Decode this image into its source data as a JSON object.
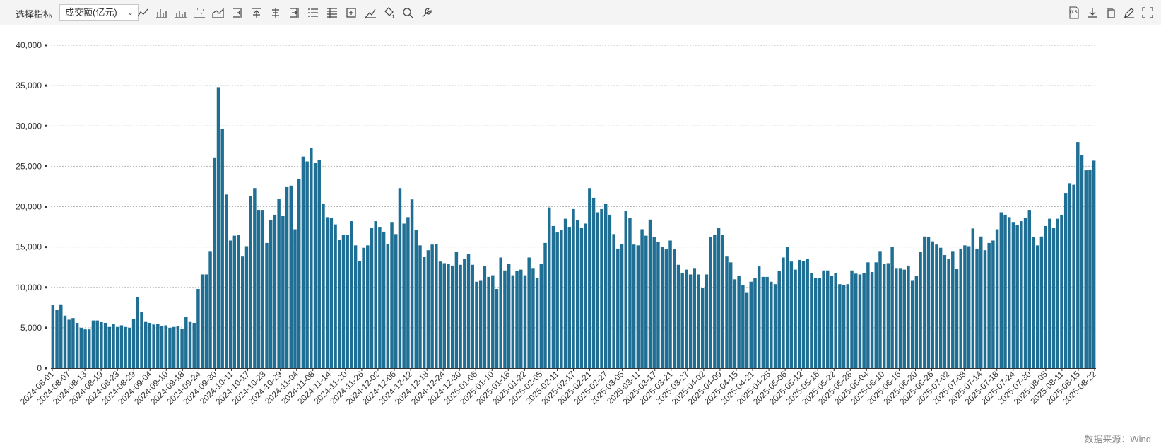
{
  "toolbar": {
    "indicator_label": "选择指标",
    "indicator_value": "成交额(亿元)",
    "tools": [
      {
        "name": "line-chart-icon"
      },
      {
        "name": "bar-chart-icon"
      },
      {
        "name": "dot-bar-icon"
      },
      {
        "name": "scatter-icon"
      },
      {
        "name": "area-chart-icon"
      },
      {
        "name": "align-right-icon"
      },
      {
        "name": "align-top-icon"
      },
      {
        "name": "align-center-icon"
      },
      {
        "name": "align-end-icon"
      },
      {
        "name": "list-icon"
      },
      {
        "name": "list-detail-icon"
      },
      {
        "name": "add-box-icon"
      },
      {
        "name": "trend-icon"
      },
      {
        "name": "fill-bucket-icon"
      },
      {
        "name": "zoom-icon"
      },
      {
        "name": "wrench-icon"
      }
    ],
    "right_tools": [
      {
        "name": "xls-export-icon",
        "text": "XLS"
      },
      {
        "name": "download-icon",
        "text": ""
      },
      {
        "name": "copy-icon",
        "text": ""
      },
      {
        "name": "edit-icon",
        "text": ""
      },
      {
        "name": "fullscreen-icon",
        "text": ""
      }
    ]
  },
  "source": "数据来源：Wind",
  "chart_data": {
    "type": "bar",
    "color": "#1f6e94",
    "ylim": [
      0,
      40000
    ],
    "yticks": [
      "0",
      "5,000",
      "10,000",
      "15,000",
      "20,000",
      "25,000",
      "30,000",
      "35,000",
      "40,000"
    ],
    "grid": true,
    "xtick_labels": [
      "2024-08-01",
      "2024-08-07",
      "2024-08-13",
      "2024-08-19",
      "2024-08-23",
      "2024-08-29",
      "2024-09-04",
      "2024-09-10",
      "2024-09-18",
      "2024-09-24",
      "2024-09-30",
      "2024-10-11",
      "2024-10-17",
      "2024-10-23",
      "2024-10-29",
      "2024-11-04",
      "2024-11-08",
      "2024-11-14",
      "2024-11-20",
      "2024-11-26",
      "2024-12-02",
      "2024-12-06",
      "2024-12-12",
      "2024-12-18",
      "2024-12-24",
      "2024-12-30",
      "2025-01-06",
      "2025-01-10",
      "2025-01-16",
      "2025-01-22",
      "2025-02-05",
      "2025-02-11",
      "2025-02-17",
      "2025-02-21",
      "2025-02-27",
      "2025-03-05",
      "2025-03-11",
      "2025-03-17",
      "2025-03-21",
      "2025-03-27",
      "2025-04-02",
      "2025-04-09",
      "2025-04-15",
      "2025-04-21",
      "2025-04-25",
      "2025-05-06",
      "2025-05-12",
      "2025-05-16",
      "2025-05-22",
      "2025-05-28",
      "2025-06-04",
      "2025-06-10",
      "2025-06-16",
      "2025-06-20",
      "2025-06-26",
      "2025-07-02",
      "2025-07-08",
      "2025-07-14",
      "2025-07-18",
      "2025-07-24",
      "2025-07-30",
      "2025-08-05",
      "2025-08-11",
      "2025-08-15",
      "2025-08-22"
    ],
    "values": [
      7800,
      7200,
      7900,
      6500,
      6000,
      6200,
      5600,
      5000,
      4800,
      4800,
      5900,
      5900,
      5700,
      5600,
      5100,
      5500,
      5100,
      5300,
      5100,
      5000,
      6100,
      8800,
      7000,
      5800,
      5600,
      5400,
      5500,
      5200,
      5300,
      5000,
      5100,
      5200,
      4900,
      6300,
      5800,
      5600,
      9800,
      11600,
      11600,
      14500,
      26100,
      34800,
      29600,
      21500,
      15800,
      16400,
      16500,
      13900,
      15100,
      21300,
      22300,
      19600,
      19600,
      15500,
      18300,
      19000,
      21000,
      18900,
      22500,
      22600,
      17200,
      23400,
      26200,
      25600,
      27300,
      25400,
      25800,
      20400,
      18700,
      18600,
      17800,
      15900,
      16500,
      16500,
      18200,
      15200,
      13300,
      14900,
      15200,
      17400,
      18200,
      17500,
      16900,
      15400,
      18100,
      16600,
      22300,
      17900,
      18700,
      20900,
      17100,
      15200,
      13800,
      14600,
      15300,
      15400,
      13200,
      13000,
      12900,
      12700,
      14400,
      12800,
      13500,
      14100,
      12800,
      10700,
      10900,
      12600,
      11300,
      11500,
      9800,
      13700,
      12100,
      12900,
      11500,
      12000,
      12200,
      11500,
      13700,
      12400,
      11200,
      12900,
      15500,
      19900,
      17600,
      16800,
      17100,
      18500,
      17500,
      19700,
      18300,
      17400,
      17900,
      22300,
      21100,
      19300,
      19700,
      20400,
      19000,
      16600,
      14800,
      15400,
      19500,
      18600,
      15300,
      15200,
      17200,
      16400,
      18400,
      16200,
      15600,
      15000,
      14700,
      15800,
      14700,
      12800,
      11800,
      12200,
      11600,
      12400,
      11600,
      9900,
      11600,
      16200,
      16500,
      17400,
      16500,
      13900,
      13100,
      11000,
      11400,
      10300,
      9400,
      10700,
      11200,
      12600,
      11300,
      11300,
      10700,
      10400,
      12000,
      13700,
      15000,
      13200,
      12200,
      13400,
      13300,
      13500,
      11800,
      11200,
      11200,
      12100,
      12100,
      11400,
      11800,
      10400,
      10300,
      10400,
      12100,
      11700,
      11600,
      11800,
      13100,
      11900,
      13100,
      14500,
      12900,
      13000,
      15000,
      12400,
      12400,
      12200,
      12700,
      10900,
      11400,
      14400,
      16300,
      16200,
      15700,
      15300,
      14900,
      14000,
      13500,
      14500,
      12300,
      14800,
      15200,
      15100,
      17300,
      14800,
      16300,
      14600,
      15500,
      15800,
      17200,
      19300,
      19000,
      18700,
      18100,
      17700,
      18200,
      18600,
      19600,
      16200,
      15200,
      16300,
      17600,
      18500,
      17400,
      18500,
      19000,
      21700,
      22900,
      22700,
      28000,
      26400,
      24500,
      24600,
      25700
    ]
  }
}
